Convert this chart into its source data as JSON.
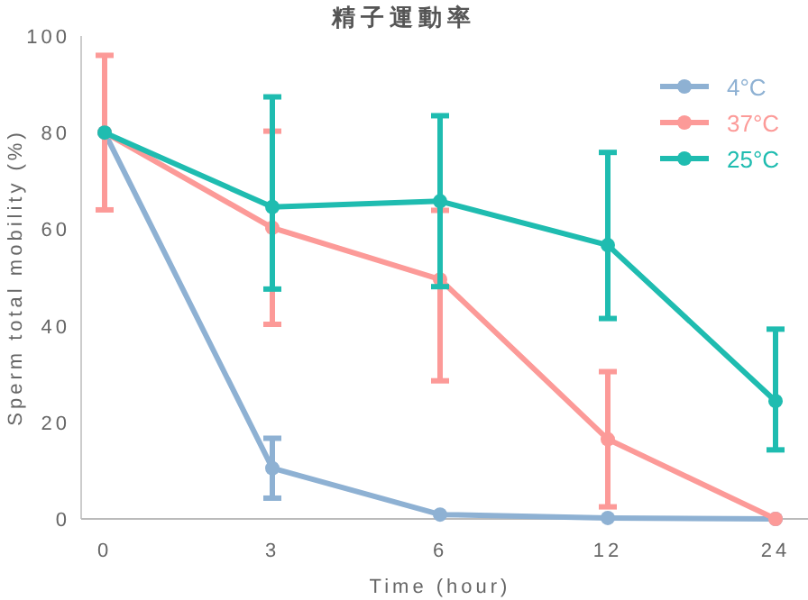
{
  "chart_data": {
    "type": "line",
    "title": "精子運動率",
    "xlabel": "Time (hour)",
    "ylabel": "Sperm total mobility (%)",
    "categories": [
      "0",
      "3",
      "6",
      "12",
      "24"
    ],
    "ylim": [
      0,
      100
    ],
    "yticks": [
      0,
      20,
      40,
      60,
      80,
      100
    ],
    "grid": false,
    "legend": "top right",
    "marker": "circle",
    "line_style": "solid",
    "series": [
      {
        "name": "4°C",
        "color": "#8eb1d3",
        "values": [
          80,
          10.5,
          0.9,
          0.2,
          0
        ],
        "errors": [
          null,
          6.2,
          null,
          null,
          null
        ]
      },
      {
        "name": "37°C",
        "color": "#fc9a98",
        "values": [
          80,
          60.3,
          49.6,
          16.5,
          0
        ],
        "errors": [
          16,
          20,
          [
            28.6,
            63.9
          ],
          14,
          null
        ]
      },
      {
        "name": "25°C",
        "color": "#1fbcb0",
        "values": [
          80,
          64.6,
          65.8,
          56.7,
          24.4
        ],
        "errors": [
          null,
          [
            47.6,
            87.4
          ],
          [
            48.1,
            83.5
          ],
          [
            41.5,
            75.9
          ],
          [
            14.3,
            39.3
          ]
        ]
      }
    ]
  }
}
